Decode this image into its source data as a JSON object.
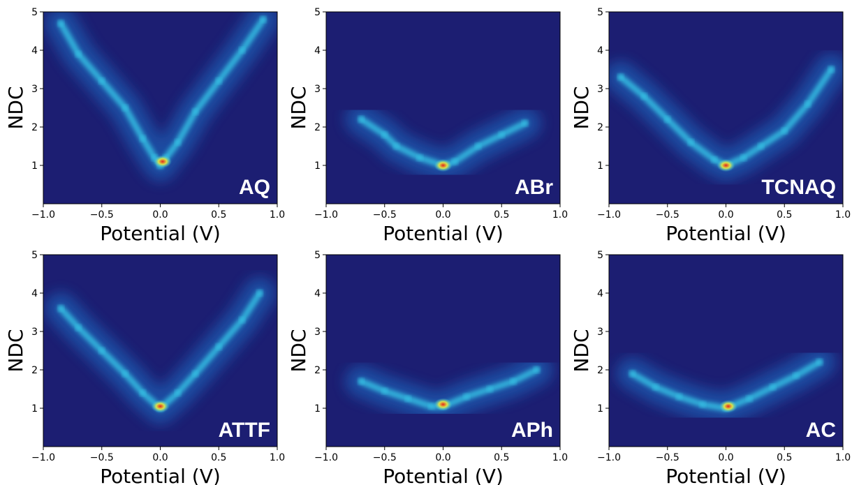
{
  "colors": {
    "background": "#1c1e72",
    "band": "#1f5ab0",
    "ridge": "#38c8e8",
    "hot": "#d9e24a",
    "peak": "#e5261b"
  },
  "chart_data": [
    {
      "type": "heatmap",
      "label": "AQ",
      "xlabel": "Potential (V)",
      "ylabel": "NDC",
      "xlim": [
        -1.0,
        1.0
      ],
      "ylim": [
        0.0,
        5.0
      ],
      "xticks": [
        "−1.0",
        "−0.5",
        "0.0",
        "0.5",
        "1.0"
      ],
      "yticks": [
        "1",
        "2",
        "3",
        "4",
        "5"
      ],
      "colormap": "jet",
      "ridge_points": [
        {
          "x": -0.85,
          "y": 4.7
        },
        {
          "x": -0.7,
          "y": 3.9
        },
        {
          "x": -0.5,
          "y": 3.2
        },
        {
          "x": -0.3,
          "y": 2.5
        },
        {
          "x": -0.15,
          "y": 1.7
        },
        {
          "x": -0.05,
          "y": 1.2
        },
        {
          "x": 0.0,
          "y": 1.0
        },
        {
          "x": 0.05,
          "y": 1.2
        },
        {
          "x": 0.15,
          "y": 1.6
        },
        {
          "x": 0.3,
          "y": 2.4
        },
        {
          "x": 0.5,
          "y": 3.2
        },
        {
          "x": 0.7,
          "y": 4.0
        },
        {
          "x": 0.88,
          "y": 4.8
        }
      ],
      "peak": {
        "x": 0.02,
        "y": 1.1
      }
    },
    {
      "type": "heatmap",
      "label": "ABr",
      "xlabel": "Potential (V)",
      "ylabel": "NDC",
      "xlim": [
        -1.0,
        1.0
      ],
      "ylim": [
        0.0,
        5.0
      ],
      "xticks": [
        "−1.0",
        "−0.5",
        "0.0",
        "0.5",
        "1.0"
      ],
      "yticks": [
        "1",
        "2",
        "3",
        "4",
        "5"
      ],
      "colormap": "jet",
      "ridge_points": [
        {
          "x": -0.7,
          "y": 2.2
        },
        {
          "x": -0.5,
          "y": 1.8
        },
        {
          "x": -0.4,
          "y": 1.5
        },
        {
          "x": -0.2,
          "y": 1.2
        },
        {
          "x": 0.0,
          "y": 1.0
        },
        {
          "x": 0.1,
          "y": 1.1
        },
        {
          "x": 0.3,
          "y": 1.5
        },
        {
          "x": 0.5,
          "y": 1.8
        },
        {
          "x": 0.7,
          "y": 2.1
        }
      ],
      "peak": {
        "x": 0.0,
        "y": 1.0
      }
    },
    {
      "type": "heatmap",
      "label": "TCNAQ",
      "xlabel": "Potential (V)",
      "ylabel": "NDC",
      "xlim": [
        -1.0,
        1.0
      ],
      "ylim": [
        0.0,
        5.0
      ],
      "xticks": [
        "−1.0",
        "−0.5",
        "0.0",
        "0.5",
        "1.0"
      ],
      "yticks": [
        "1",
        "2",
        "3",
        "4",
        "5"
      ],
      "colormap": "jet",
      "ridge_points": [
        {
          "x": -0.9,
          "y": 3.3
        },
        {
          "x": -0.7,
          "y": 2.8
        },
        {
          "x": -0.5,
          "y": 2.2
        },
        {
          "x": -0.3,
          "y": 1.6
        },
        {
          "x": -0.1,
          "y": 1.15
        },
        {
          "x": 0.0,
          "y": 1.0
        },
        {
          "x": 0.15,
          "y": 1.2
        },
        {
          "x": 0.3,
          "y": 1.5
        },
        {
          "x": 0.5,
          "y": 1.9
        },
        {
          "x": 0.7,
          "y": 2.6
        },
        {
          "x": 0.9,
          "y": 3.5
        }
      ],
      "peak": {
        "x": 0.0,
        "y": 1.0
      }
    },
    {
      "type": "heatmap",
      "label": "ATTF",
      "xlabel": "Potential (V)",
      "ylabel": "NDC",
      "xlim": [
        -1.0,
        1.0
      ],
      "ylim": [
        0.0,
        5.0
      ],
      "xticks": [
        "−1.0",
        "−0.5",
        "0.0",
        "0.5",
        "1.0"
      ],
      "yticks": [
        "1",
        "2",
        "3",
        "4",
        "5"
      ],
      "colormap": "jet",
      "ridge_points": [
        {
          "x": -0.85,
          "y": 3.6
        },
        {
          "x": -0.7,
          "y": 3.1
        },
        {
          "x": -0.5,
          "y": 2.5
        },
        {
          "x": -0.3,
          "y": 1.9
        },
        {
          "x": -0.15,
          "y": 1.4
        },
        {
          "x": 0.0,
          "y": 1.0
        },
        {
          "x": 0.15,
          "y": 1.4
        },
        {
          "x": 0.3,
          "y": 1.9
        },
        {
          "x": 0.5,
          "y": 2.6
        },
        {
          "x": 0.7,
          "y": 3.3
        },
        {
          "x": 0.85,
          "y": 4.0
        }
      ],
      "peak": {
        "x": 0.0,
        "y": 1.05
      }
    },
    {
      "type": "heatmap",
      "label": "APh",
      "xlabel": "Potential (V)",
      "ylabel": "NDC",
      "xlim": [
        -1.0,
        1.0
      ],
      "ylim": [
        0.0,
        5.0
      ],
      "xticks": [
        "−1.0",
        "−0.5",
        "0.0",
        "0.5",
        "1.0"
      ],
      "yticks": [
        "1",
        "2",
        "3",
        "4",
        "5"
      ],
      "colormap": "jet",
      "ridge_points": [
        {
          "x": -0.7,
          "y": 1.7
        },
        {
          "x": -0.5,
          "y": 1.45
        },
        {
          "x": -0.3,
          "y": 1.25
        },
        {
          "x": -0.1,
          "y": 1.05
        },
        {
          "x": 0.0,
          "y": 1.05
        },
        {
          "x": 0.2,
          "y": 1.3
        },
        {
          "x": 0.4,
          "y": 1.5
        },
        {
          "x": 0.6,
          "y": 1.7
        },
        {
          "x": 0.8,
          "y": 2.0
        }
      ],
      "peak": {
        "x": 0.0,
        "y": 1.1
      }
    },
    {
      "type": "heatmap",
      "label": "AC",
      "xlabel": "Potential (V)",
      "ylabel": "NDC",
      "xlim": [
        -1.0,
        1.0
      ],
      "ylim": [
        0.0,
        5.0
      ],
      "xticks": [
        "−1.0",
        "−0.5",
        "0.0",
        "0.5",
        "1.0"
      ],
      "yticks": [
        "1",
        "2",
        "3",
        "4",
        "5"
      ],
      "colormap": "jet",
      "ridge_points": [
        {
          "x": -0.8,
          "y": 1.9
        },
        {
          "x": -0.6,
          "y": 1.55
        },
        {
          "x": -0.4,
          "y": 1.3
        },
        {
          "x": -0.2,
          "y": 1.1
        },
        {
          "x": 0.0,
          "y": 1.0
        },
        {
          "x": 0.2,
          "y": 1.25
        },
        {
          "x": 0.4,
          "y": 1.55
        },
        {
          "x": 0.6,
          "y": 1.85
        },
        {
          "x": 0.8,
          "y": 2.2
        }
      ],
      "peak": {
        "x": 0.02,
        "y": 1.05
      }
    }
  ]
}
